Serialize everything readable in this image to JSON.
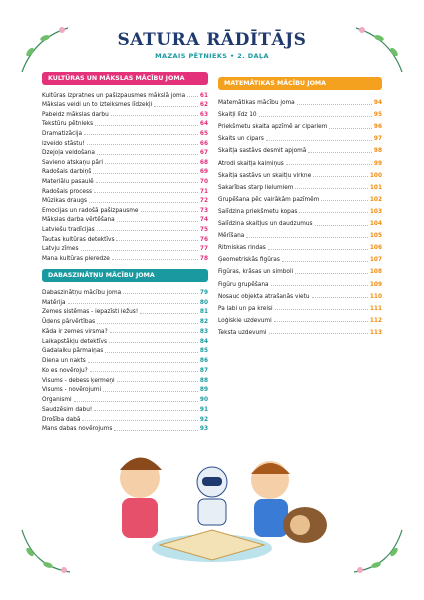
{
  "header": {
    "title": "SATURA RĀDĪTĀJS",
    "subtitle": "MAZAIS PĒTNIEKS • 2. DAĻA"
  },
  "sections": [
    {
      "title": "KULTŪRAS UN MĀKSLAS MĀCĪBU JOMA",
      "entries": [
        {
          "title": "Kultūras izpratnes un pašizpausmes mākslā joma",
          "page": 61
        },
        {
          "title": "Mākslas veidi un to izteiksmes līdzekļi",
          "page": 62
        },
        {
          "title": "Pabeidz mākslas darbu",
          "page": 63
        },
        {
          "title": "Tekstūru pētnieks",
          "page": 64
        },
        {
          "title": "Dramatizācija",
          "page": 65
        },
        {
          "title": "Izveido stāstu!",
          "page": 66
        },
        {
          "title": "Dzejoļa veidošana",
          "page": 67
        },
        {
          "title": "Savieno atskaņu pāri",
          "page": 68
        },
        {
          "title": "Radošais darbiņš",
          "page": 69
        },
        {
          "title": "Materiālu pasaulē",
          "page": 70
        },
        {
          "title": "Radošais process",
          "page": 71
        },
        {
          "title": "Mūzikas draugs",
          "page": 72
        },
        {
          "title": "Emocijas un radošā pašizpausme",
          "page": 73
        },
        {
          "title": "Mākslas darba vērtēšana",
          "page": 74
        },
        {
          "title": "Latviešu tradīcijas",
          "page": 75
        },
        {
          "title": "Tautas kultūras detektīvs",
          "page": 76
        },
        {
          "title": "Latvju zīmes",
          "page": 77
        },
        {
          "title": "Mana kultūras pieredze",
          "page": 78
        }
      ]
    },
    {
      "title": "DABASZINĀTŅU MĀCĪBU JOMA",
      "entries": [
        {
          "title": "Dabaszinātņu mācību joma",
          "page": 79
        },
        {
          "title": "Matērija",
          "page": 80
        },
        {
          "title": "Zemes sistēmas - iepazīsti iežus!",
          "page": 81
        },
        {
          "title": "Ūdens pārvērtības",
          "page": 82
        },
        {
          "title": "Kāda ir zemes virsma?",
          "page": 83
        },
        {
          "title": "Laikapstākļu detektīvs",
          "page": 84
        },
        {
          "title": "Gadalaiku pārmaiņas",
          "page": 85
        },
        {
          "title": "Diena un nakts",
          "page": 86
        },
        {
          "title": "Ko es novēroju?",
          "page": 87
        },
        {
          "title": "Visums - debess ķermeņi",
          "page": 88
        },
        {
          "title": "Visums - novērojumi",
          "page": 89
        },
        {
          "title": "Organismi",
          "page": 90
        },
        {
          "title": "Saudzēsim dabu!",
          "page": 91
        },
        {
          "title": "Drošība dabā",
          "page": 92
        },
        {
          "title": "Mans dabas novērojums",
          "page": 93
        }
      ]
    },
    {
      "title": "MATEMĀTIKAS MĀCĪBU JOMA",
      "entries": [
        {
          "title": "Matemātikas mācību joma",
          "page": 94
        },
        {
          "title": "Skaitļi līdz 10",
          "page": 95
        },
        {
          "title": "Priekšmetu skaita apzīmē ar cipariem",
          "page": 96
        },
        {
          "title": "Skaits un cipars",
          "page": 97
        },
        {
          "title": "Skaitļa sastāvs desmit apjomā",
          "page": 98
        },
        {
          "title": "Atrodi skaitļa kaimiņus",
          "page": 99
        },
        {
          "title": "Skaitļa sastāvs un skaitļu virkne",
          "page": 100
        },
        {
          "title": "Sakarības starp lielumiem",
          "page": 101
        },
        {
          "title": "Grupēšana pēc vairākām pazīmēm",
          "page": 102
        },
        {
          "title": "Salīdzina priekšmetu kopas",
          "page": 103
        },
        {
          "title": "Salīdzina skaitļus un daudzumus",
          "page": 104
        },
        {
          "title": "Mērīšana",
          "page": 105
        },
        {
          "title": "Ritmiskas rindas",
          "page": 106
        },
        {
          "title": "Ģeometriskās figūras",
          "page": 107
        },
        {
          "title": "Figūras, krāsas un simboli",
          "page": 108
        },
        {
          "title": "Figūru grupēšana",
          "page": 109
        },
        {
          "title": "Nosauc objekta atrašanās vietu",
          "page": 110
        },
        {
          "title": "Pa labi un pa kreisi",
          "page": 111
        },
        {
          "title": "Loģiskie uzdevumi",
          "page": 112
        },
        {
          "title": "Teksta uzdevumi",
          "page": 113
        }
      ]
    }
  ]
}
